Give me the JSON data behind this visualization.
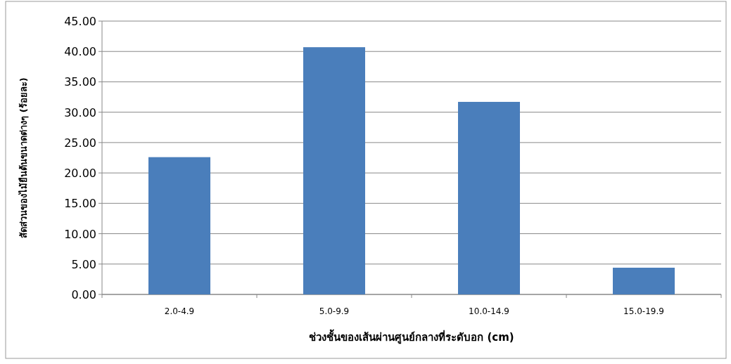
{
  "chart_data": {
    "type": "bar",
    "xlabel": "ช่วงชั้นของเส้นผ่านศูนย์กลางที่ระดับอก (cm)",
    "ylabel": "สัดส่วนของไม้ยืนต้นขนาดต่างๆ (ร้อยละ)",
    "categories": [
      "2.0-4.9",
      "5.0-9.9",
      "10.0-14.9",
      "15.0-19.9"
    ],
    "values": [
      22.6,
      40.7,
      31.7,
      4.4
    ],
    "color": "#4a7ebb",
    "ylim": [
      0,
      45
    ],
    "yticks": [
      {
        "value": 0,
        "label": "0.00"
      },
      {
        "value": 5,
        "label": "5.00"
      },
      {
        "value": 10,
        "label": "10.00"
      },
      {
        "value": 15,
        "label": "15.00"
      },
      {
        "value": 20,
        "label": "20.00"
      },
      {
        "value": 25,
        "label": "25.00"
      },
      {
        "value": 30,
        "label": "30.00"
      },
      {
        "value": 35,
        "label": "35.00"
      },
      {
        "value": 40,
        "label": "40.00"
      },
      {
        "value": 45,
        "label": "45.00"
      }
    ],
    "grid": "y"
  }
}
